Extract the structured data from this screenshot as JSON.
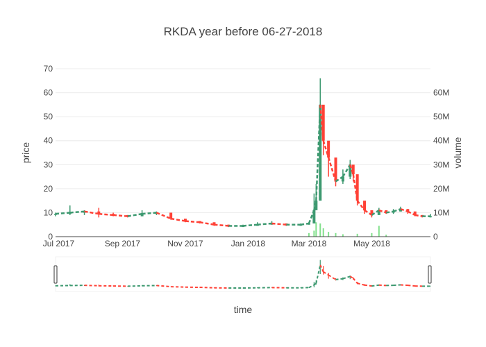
{
  "chart_data": {
    "type": "candlestick",
    "title": "RKDA year before 06-27-2018",
    "xlabel": "time",
    "ylabel": "price",
    "y2label": "volume",
    "xlim": [
      "2017-06-28",
      "2018-06-27"
    ],
    "ylim": [
      0,
      70
    ],
    "y2lim": [
      0,
      70000000
    ],
    "yticks": [
      "0",
      "10",
      "20",
      "30",
      "40",
      "50",
      "60",
      "70"
    ],
    "y2ticks": [
      "0",
      "10M",
      "20M",
      "30M",
      "40M",
      "50M",
      "60M"
    ],
    "xticks": [
      "Jul 2017",
      "Sep 2017",
      "Nov 2017",
      "Jan 2018",
      "Mar 2018",
      "May 2018"
    ],
    "grid": true,
    "legend": "none",
    "rangeslider": true,
    "colors": {
      "increasing": "#3d9970",
      "decreasing": "#ff4136",
      "volume": "#2ecc40",
      "volume_down": "#ff4136"
    },
    "series": [
      {
        "name": "",
        "kind": "ohlc",
        "x": [
          "2017-06-28",
          "2017-07-12",
          "2017-07-26",
          "2017-08-09",
          "2017-08-23",
          "2017-09-06",
          "2017-09-20",
          "2017-10-04",
          "2017-10-18",
          "2017-11-01",
          "2017-11-15",
          "2017-11-29",
          "2017-12-13",
          "2017-12-27",
          "2018-01-10",
          "2018-01-24",
          "2018-02-07",
          "2018-02-21",
          "2018-03-01",
          "2018-03-06",
          "2018-03-08",
          "2018-03-12",
          "2018-03-15",
          "2018-03-20",
          "2018-03-27",
          "2018-04-03",
          "2018-04-10",
          "2018-04-13",
          "2018-04-17",
          "2018-04-24",
          "2018-05-01",
          "2018-05-08",
          "2018-05-15",
          "2018-05-22",
          "2018-05-29",
          "2018-06-05",
          "2018-06-12",
          "2018-06-19",
          "2018-06-27"
        ],
        "close": [
          9.5,
          10,
          10.5,
          9.5,
          9,
          8.5,
          9.5,
          10,
          7.5,
          6.5,
          6,
          5,
          4.5,
          4.5,
          5,
          5.5,
          5,
          5,
          5.5,
          11,
          15,
          55,
          40,
          33,
          23,
          25,
          30,
          26,
          15,
          11,
          9,
          11,
          10,
          10.5,
          11.5,
          10.5,
          9,
          8.5,
          8.5
        ],
        "high": [
          10,
          13,
          11,
          12,
          10,
          9,
          11,
          10.5,
          8,
          7,
          6.5,
          5.5,
          5,
          5,
          6,
          6.5,
          5.5,
          5.5,
          6,
          18,
          22,
          66,
          53,
          38,
          26,
          28,
          32,
          28,
          18,
          13,
          10.5,
          12,
          11,
          11.5,
          12.5,
          11.5,
          10,
          9,
          9.5
        ],
        "low": [
          8.5,
          9,
          9,
          8,
          8.5,
          8,
          8.5,
          9,
          7,
          6,
          5.5,
          4.5,
          4,
          4,
          4.5,
          5,
          4.5,
          4.5,
          5,
          6,
          12,
          35,
          34,
          25,
          21,
          22,
          24,
          23,
          13,
          9.5,
          8,
          9.5,
          9.5,
          9.5,
          10.5,
          9.5,
          8.5,
          8,
          8
        ]
      },
      {
        "name": "",
        "kind": "volume",
        "x": [
          "2018-03-01",
          "2018-03-06",
          "2018-03-08",
          "2018-03-12",
          "2018-03-15",
          "2018-03-20",
          "2018-03-27",
          "2018-04-03",
          "2018-04-17",
          "2018-05-01",
          "2018-05-08",
          "2018-05-15"
        ],
        "values": [
          1500000,
          2500000,
          6000000,
          5500000,
          3500000,
          2000000,
          1500000,
          1000000,
          1200000,
          1500000,
          4500000,
          800000
        ]
      }
    ]
  }
}
